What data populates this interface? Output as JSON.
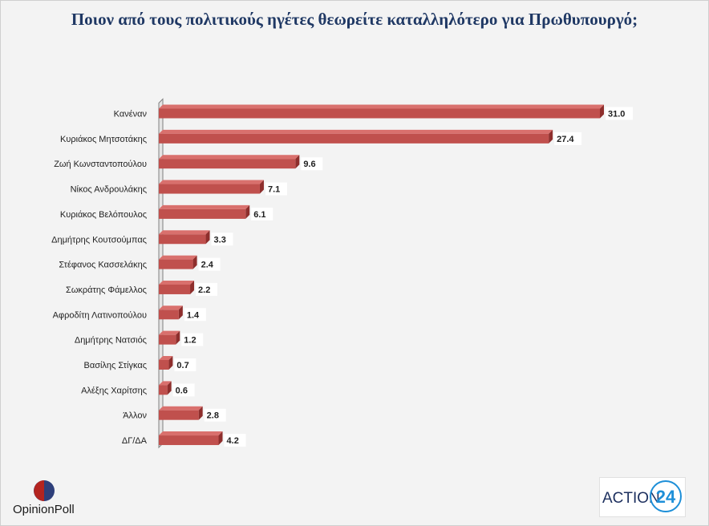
{
  "title": "Ποιον από τους πολιτικούς ηγέτες θεωρείτε καταλληλότερο για Πρωθυπουργό;",
  "chart_data": {
    "type": "bar",
    "orientation": "horizontal",
    "style": "3d",
    "title": "Ποιον από τους πολιτικούς ηγέτες θεωρείτε καταλληλότερο για Πρωθυπουργό;",
    "categories": [
      "Κανέναν",
      "Κυριάκος Μητσοτάκης",
      "Ζωή Κωνσταντοπούλου",
      "Νίκος Ανδρουλάκης",
      "Κυριάκος Βελόπουλος",
      "Δημήτρης Κουτσούμπας",
      "Στέφανος Κασσελάκης",
      "Σωκράτης Φάμελλος",
      "Αφροδίτη Λατινοπούλου",
      "Δημήτρης Νατσιός",
      "Βασίλης Στίγκας",
      "Αλέξης Χαρίτσης",
      "Άλλον",
      "ΔΓ/ΔΑ"
    ],
    "values": [
      31.0,
      27.4,
      9.6,
      7.1,
      6.1,
      3.3,
      2.4,
      2.2,
      1.4,
      1.2,
      0.7,
      0.6,
      2.8,
      4.2
    ],
    "value_labels": [
      "31.0",
      "27.4",
      "9.6",
      "7.1",
      "6.1",
      "3.3",
      "2.4",
      "2.2",
      "1.4",
      "1.2",
      "0.7",
      "0.6",
      "2.8",
      "4.2"
    ],
    "xlim": [
      0,
      31.0
    ],
    "grid": false,
    "legend": "none",
    "colors": {
      "bar": "#c0504d",
      "bar_top": "#d9706d",
      "bar_end": "#8e2e2c",
      "label_text": "#1f1f1f",
      "title": "#1f3864"
    }
  },
  "logos": {
    "left": {
      "text_part1": "Opinion",
      "text_part2": "Poll",
      "name": "opinionpoll-logo"
    },
    "right": {
      "text": "ACTION",
      "number": "24",
      "name": "action24-logo"
    }
  }
}
